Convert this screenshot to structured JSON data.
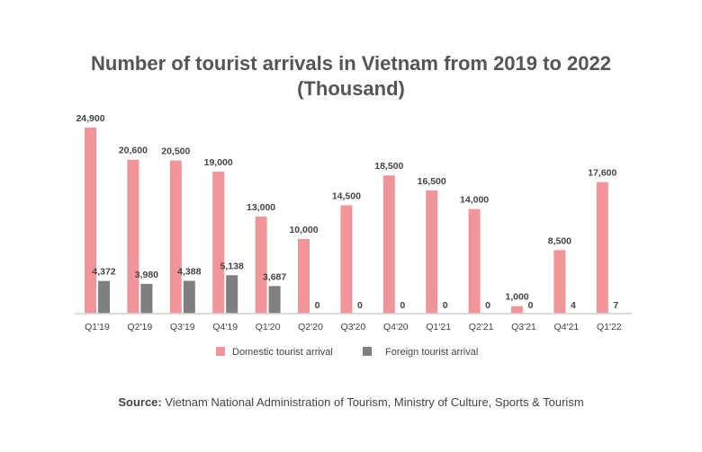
{
  "chart_data": {
    "type": "bar",
    "title": "Number of tourist arrivals in Vietnam from 2019 to 2022",
    "subtitle": "(Thousand)",
    "categories": [
      "Q1'19",
      "Q2'19",
      "Q3'19",
      "Q4'19",
      "Q1'20",
      "Q2'20",
      "Q3'20",
      "Q4'20",
      "Q1'21",
      "Q2'21",
      "Q3'21",
      "Q4'21",
      "Q1'22"
    ],
    "series": [
      {
        "name": "Domestic tourist arrival",
        "color": "#f0959a",
        "values": [
          24900,
          20600,
          20500,
          19000,
          13000,
          10000,
          14500,
          18500,
          16500,
          14000,
          1000,
          8500,
          17600
        ],
        "labels": [
          "24,900",
          "20,600",
          "20,500",
          "19,000",
          "13,000",
          "10,000",
          "14,500",
          "18,500",
          "16,500",
          "14,000",
          "1,000",
          "8,500",
          "17,600"
        ]
      },
      {
        "name": "Foreign tourist arrival",
        "color": "#7f7f7f",
        "values": [
          4372,
          3980,
          4388,
          5138,
          3687,
          0,
          0,
          0,
          0,
          0,
          0,
          4,
          7
        ],
        "labels": [
          "4,372",
          "3,980",
          "4,388",
          "5,138",
          "3,687",
          "0",
          "0",
          "0",
          "0",
          "0",
          "0",
          "4",
          "7"
        ]
      }
    ],
    "xlabel": "",
    "ylabel": "",
    "ylim": [
      0,
      24900
    ],
    "grid": false,
    "legend": "bottom"
  },
  "source": {
    "label": "Source:",
    "text": " Vietnam National Administration of Tourism, Ministry of Culture, Sports & Tourism"
  }
}
